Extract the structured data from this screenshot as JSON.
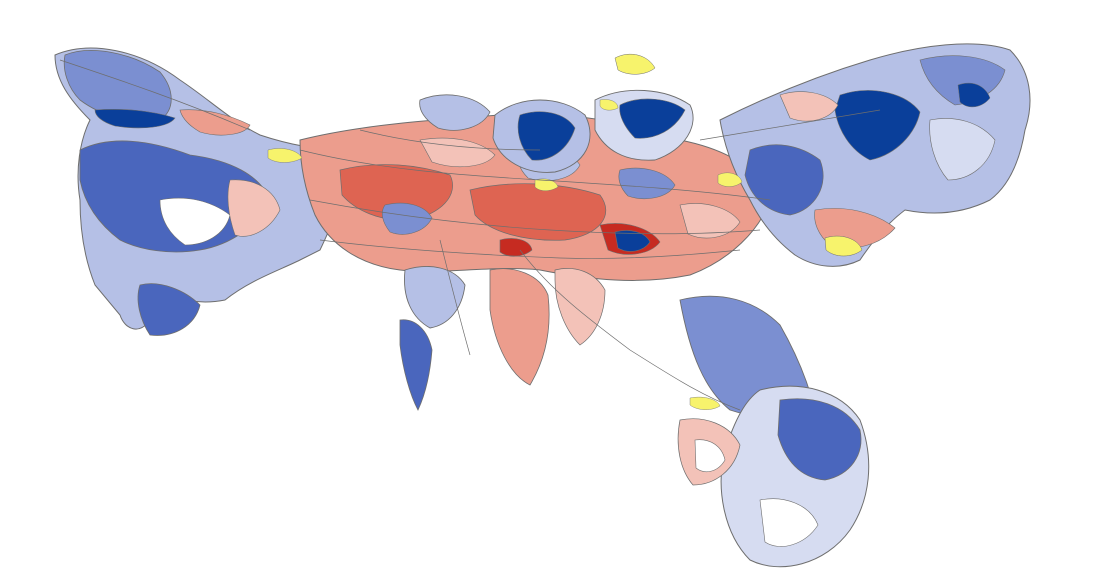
{
  "map": {
    "type": "cartogram",
    "palette": {
      "dark_blue": "#0a3f9a",
      "blue": "#4a66bd",
      "mid_blue": "#7b8fd1",
      "light_blue": "#b5c0e6",
      "pale_blue": "#d6dcf1",
      "pale_red": "#f3c2b8",
      "light_red": "#ec9d8d",
      "red": "#de6452",
      "dark_red": "#c62b21",
      "yellow": "#f7f36c",
      "border": "#6e6e6e"
    }
  }
}
